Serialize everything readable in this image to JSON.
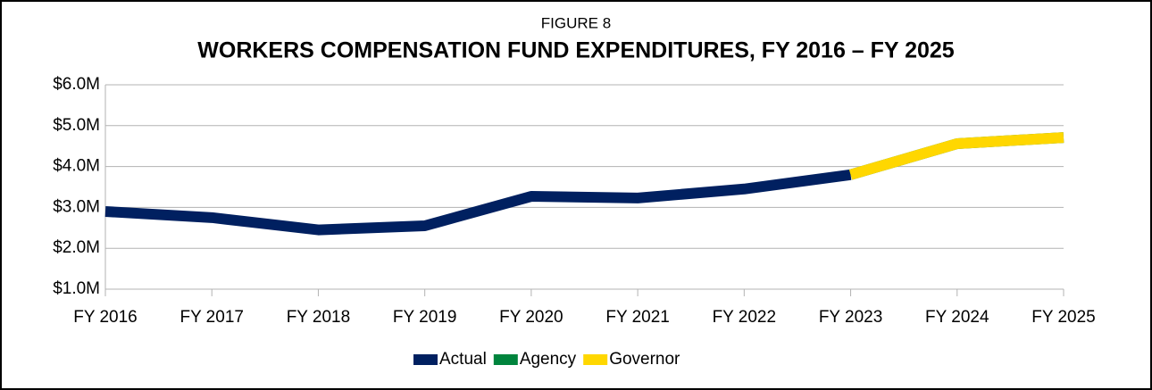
{
  "chart_data": {
    "type": "line",
    "subtitle": "FIGURE 8",
    "title": "WORKERS COMPENSATION FUND EXPENDITURES, FY 2016 – FY 2025",
    "categories": [
      "FY 2016",
      "FY 2017",
      "FY 2018",
      "FY 2019",
      "FY 2020",
      "FY 2021",
      "FY 2022",
      "FY 2023",
      "FY 2024",
      "FY 2025"
    ],
    "series": [
      {
        "name": "Actual",
        "color": "#002060",
        "values": [
          2.9,
          2.75,
          2.45,
          2.55,
          3.27,
          3.23,
          3.45,
          3.8,
          null,
          null
        ]
      },
      {
        "name": "Agency",
        "color": "#00843d",
        "values": [
          null,
          null,
          null,
          null,
          null,
          null,
          null,
          3.8,
          4.56,
          4.71
        ]
      },
      {
        "name": "Governor",
        "color": "#ffd700",
        "values": [
          null,
          null,
          null,
          null,
          null,
          null,
          null,
          3.8,
          4.56,
          4.71
        ]
      }
    ],
    "ylim": [
      1,
      6
    ],
    "yticks": [
      {
        "value": 1,
        "label": "$1.0M"
      },
      {
        "value": 2,
        "label": "$2.0M"
      },
      {
        "value": 3,
        "label": "$3.0M"
      },
      {
        "value": 4,
        "label": "$4.0M"
      },
      {
        "value": 5,
        "label": "$5.0M"
      },
      {
        "value": 6,
        "label": "$6.0M"
      }
    ],
    "grid": true,
    "legend": "bottom"
  }
}
